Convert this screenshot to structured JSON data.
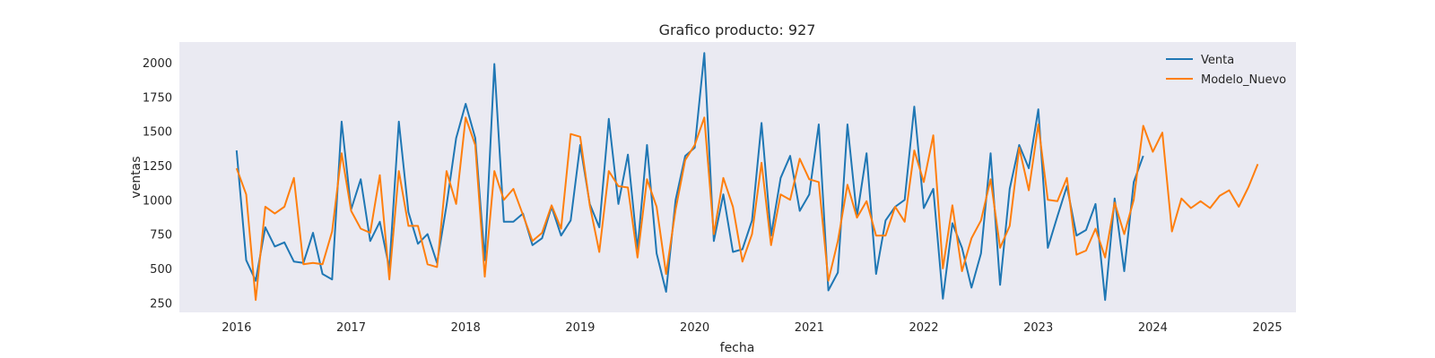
{
  "chart_data": {
    "type": "line",
    "title": "Grafico producto: 927",
    "xlabel": "fecha",
    "ylabel": "ventas",
    "xlim": [
      "2015-07-01",
      "2025-04-01"
    ],
    "ylim": [
      180,
      2150
    ],
    "x_ticks": [
      "2016",
      "2017",
      "2018",
      "2019",
      "2020",
      "2021",
      "2022",
      "2023",
      "2024",
      "2025"
    ],
    "y_ticks": [
      250,
      500,
      750,
      1000,
      1250,
      1500,
      1750,
      2000
    ],
    "grid": false,
    "legend_position": "top-right",
    "colors": {
      "background": "#eaeaf2",
      "Venta": "#1f77b4",
      "Modelo_Nuevo": "#ff7f0e"
    },
    "series": [
      {
        "name": "Venta",
        "start": "2016-01",
        "values": [
          1360,
          560,
          410,
          800,
          660,
          690,
          550,
          540,
          760,
          460,
          420,
          1570,
          930,
          1150,
          700,
          840,
          500,
          1570,
          910,
          680,
          750,
          540,
          960,
          1450,
          1700,
          1450,
          560,
          1990,
          840,
          840,
          900,
          670,
          720,
          950,
          740,
          850,
          1400,
          970,
          800,
          1590,
          970,
          1330,
          640,
          1400,
          610,
          330,
          1000,
          1320,
          1380,
          2070,
          700,
          1040,
          620,
          640,
          850,
          1560,
          740,
          1160,
          1320,
          920,
          1040,
          1550,
          340,
          470,
          1550,
          880,
          1340,
          460,
          850,
          950,
          1000,
          1680,
          940,
          1080,
          280,
          830,
          650,
          360,
          610,
          1340,
          380,
          1080,
          1400,
          1230,
          1660,
          650,
          880,
          1100,
          740,
          780,
          970,
          270,
          1010,
          480,
          1130,
          1320
        ]
      },
      {
        "name": "Modelo_Nuevo",
        "start": "2016-01",
        "values": [
          1230,
          1040,
          270,
          950,
          900,
          950,
          1160,
          530,
          540,
          530,
          770,
          1340,
          920,
          790,
          760,
          1180,
          420,
          1210,
          810,
          810,
          530,
          510,
          1210,
          970,
          1600,
          1400,
          440,
          1210,
          1000,
          1080,
          890,
          700,
          760,
          960,
          790,
          1480,
          1460,
          960,
          620,
          1210,
          1100,
          1090,
          580,
          1150,
          950,
          460,
          930,
          1290,
          1400,
          1600,
          750,
          1160,
          950,
          550,
          750,
          1270,
          670,
          1040,
          1000,
          1300,
          1150,
          1130,
          410,
          700,
          1110,
          870,
          990,
          740,
          740,
          950,
          840,
          1360,
          1130,
          1470,
          500,
          960,
          480,
          720,
          850,
          1150,
          650,
          810,
          1380,
          1070,
          1550,
          1000,
          990,
          1160,
          600,
          630,
          790,
          580,
          980,
          750,
          1000,
          1540,
          1350,
          1490,
          770,
          1010,
          940,
          990,
          940,
          1030,
          1070,
          950,
          1090,
          1260
        ]
      }
    ]
  }
}
